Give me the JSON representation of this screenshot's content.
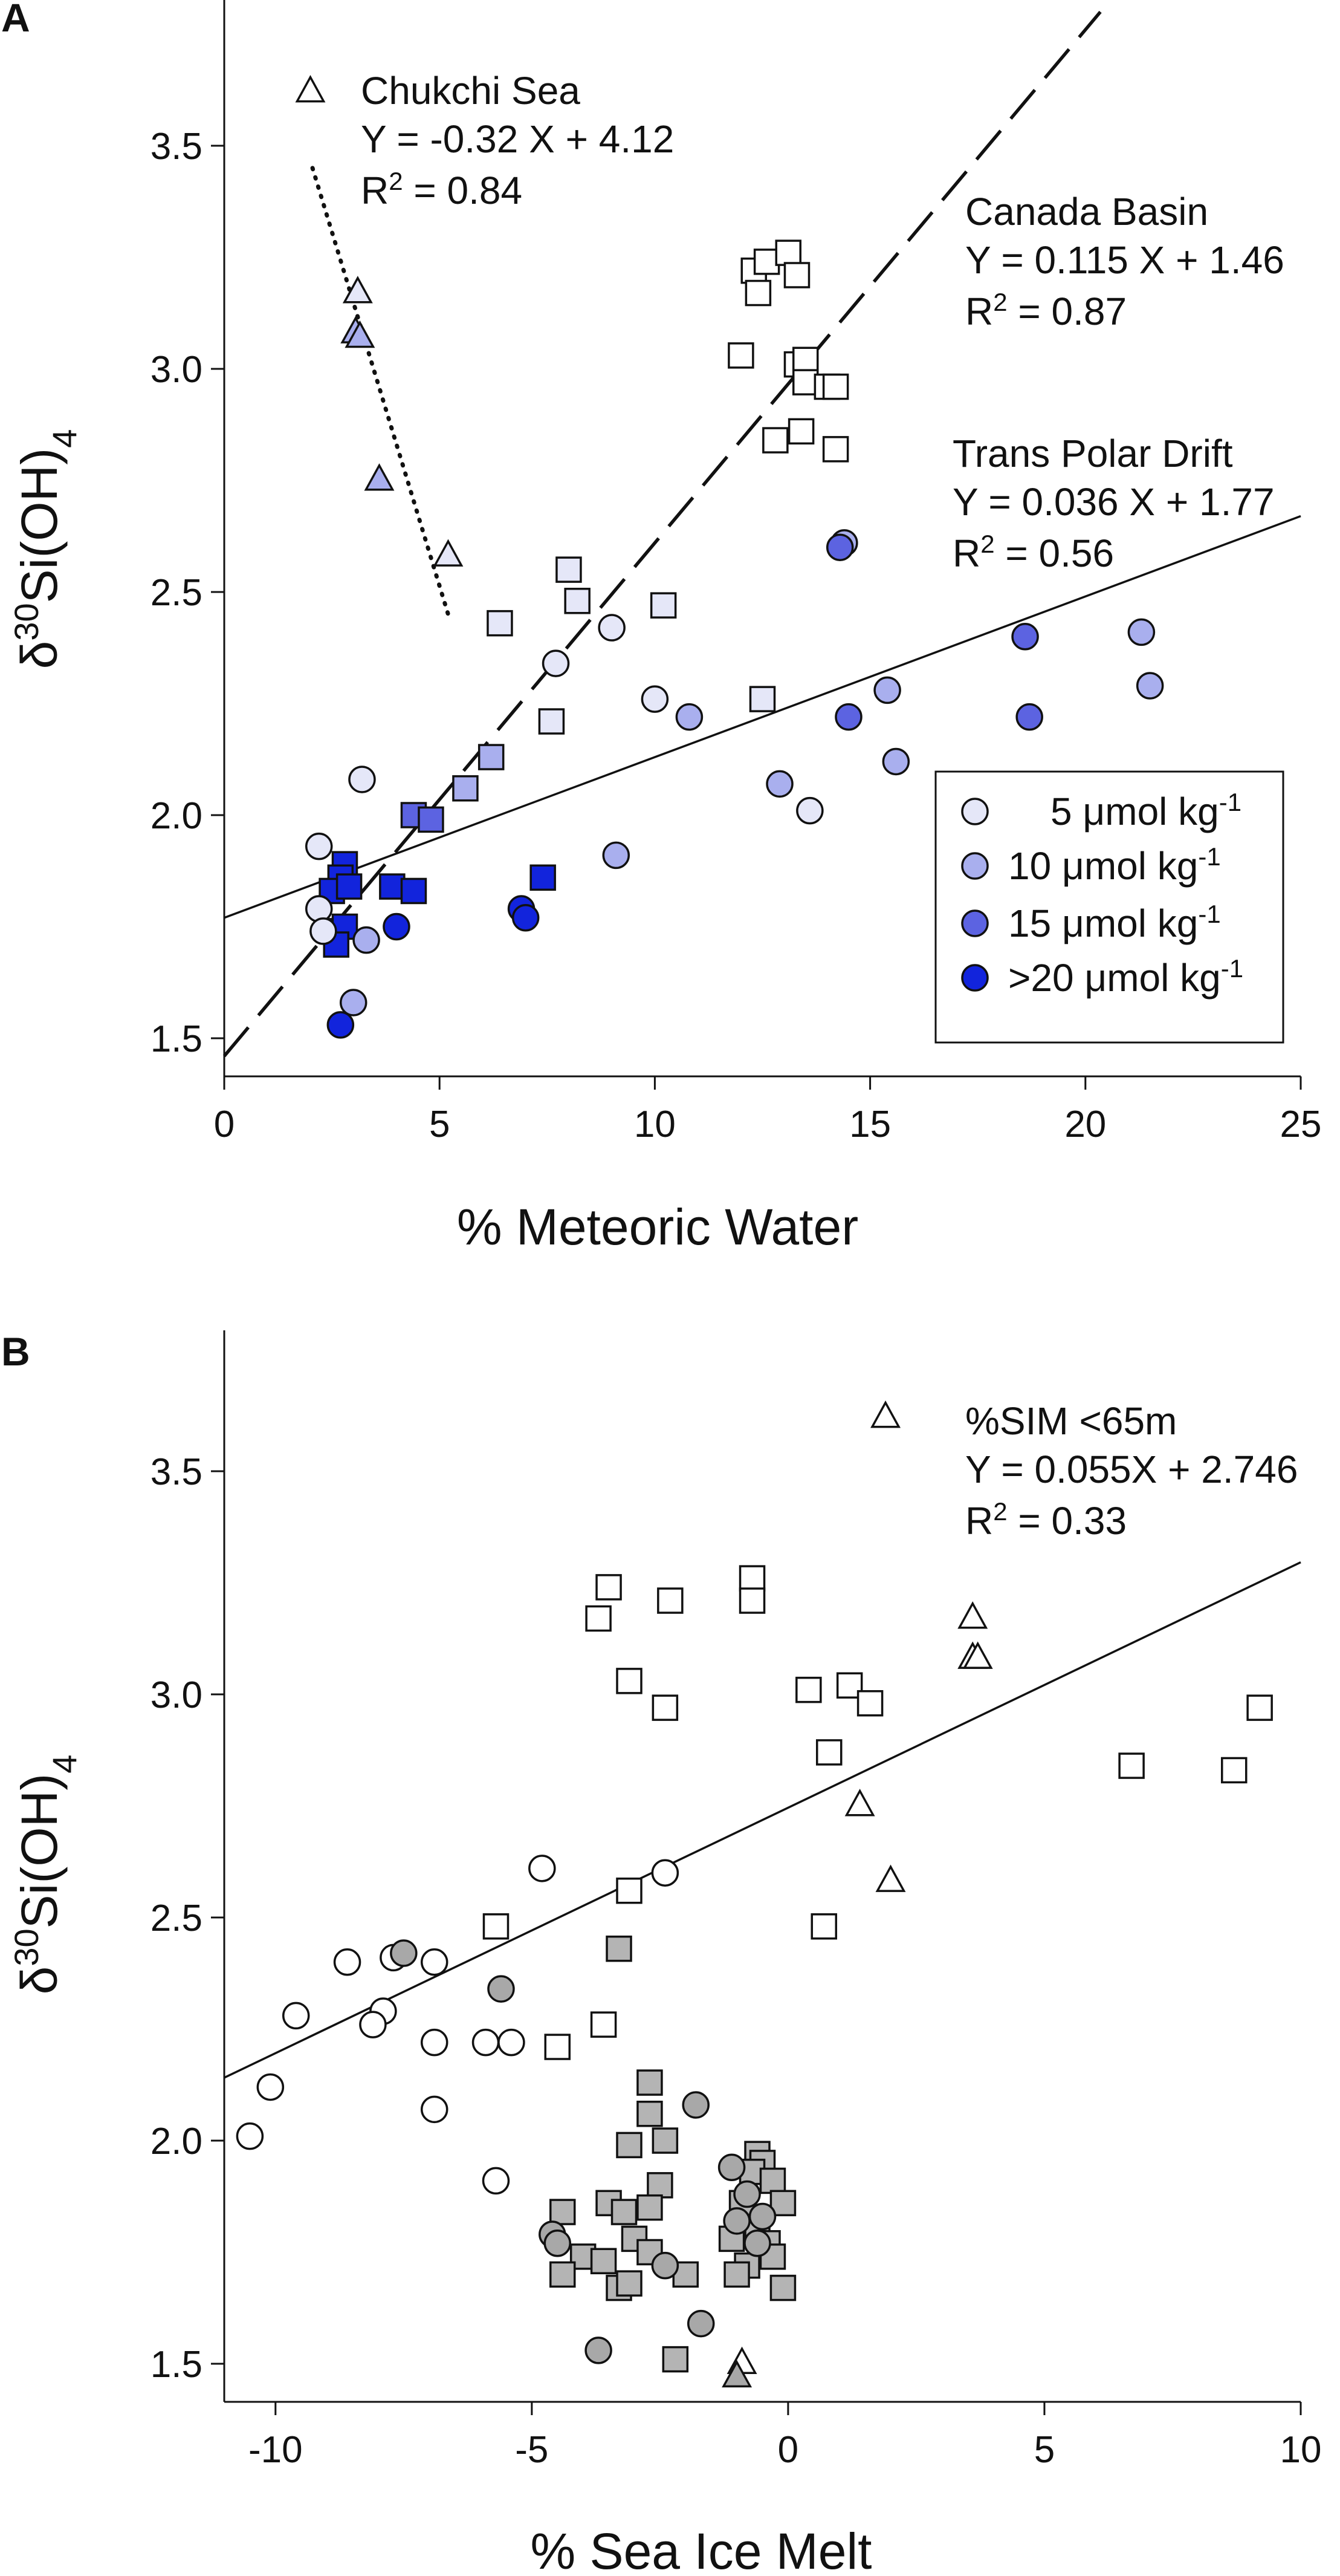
{
  "colors": {
    "c5": "#E5E7F8",
    "c10": "#A9AFEE",
    "c15": "#5C63E1",
    "c20": "#1224DC",
    "open": "#FFFFFF",
    "gray_circle": "#A8A8A8",
    "gray_square": "#B4B4B4",
    "outline": "#111111"
  },
  "chart_data": [
    {
      "panel": "A",
      "type": "scatter",
      "xlabel": "% Meteoric Water",
      "ylabel_main": "δ",
      "ylabel_sup": "30",
      "ylabel_rest": "Si(OH)",
      "ylabel_sub": "4",
      "xlim": [
        0,
        25
      ],
      "ylim": [
        1.45,
        3.8
      ],
      "xticks": [
        "0",
        "5",
        "10",
        "15",
        "20",
        "25"
      ],
      "yticks": [
        "1.5",
        "2.0",
        "2.5",
        "3.0",
        "3.5"
      ],
      "fits": [
        {
          "name": "Chukchi Sea",
          "eq": "Y = -0.32 X + 4.12",
          "r2_label": "R",
          "r2_sup": "2",
          "r2_val": " = 0.84",
          "slope": -0.32,
          "intercept": 4.12,
          "x_range": [
            2.05,
            5.2
          ],
          "style": "dotted"
        },
        {
          "name": "Canada Basin",
          "eq": "Y = 0.115 X + 1.46",
          "r2_label": "R",
          "r2_sup": "2",
          "r2_val": " = 0.87",
          "slope": 0.115,
          "intercept": 1.46,
          "x_range": [
            0,
            20.4
          ],
          "style": "dashed"
        },
        {
          "name": "Trans Polar Drift",
          "eq": "Y = 0.036 X + 1.77",
          "r2_label": "R",
          "r2_sup": "2",
          "r2_val": " = 0.56",
          "slope": 0.036,
          "intercept": 1.77,
          "x_range": [
            0,
            25
          ],
          "style": "solid"
        }
      ],
      "legend": {
        "placement": "bottom-right",
        "entries": [
          {
            "prefix": "5 ",
            "mu": "μ",
            "unit": "mol kg",
            "sup": "-1",
            "color_key": "c5"
          },
          {
            "prefix": "10 ",
            "mu": "μ",
            "unit": "mol kg",
            "sup": "-1",
            "color_key": "c10"
          },
          {
            "prefix": "15 ",
            "mu": "μ",
            "unit": "mol kg",
            "sup": "-1",
            "color_key": "c15"
          },
          {
            "prefix": ">20 ",
            "mu": "μ",
            "unit": "mol kg",
            "sup": "-1",
            "color_key": "c20"
          }
        ]
      },
      "series": [
        {
          "name": "Chukchi Sea",
          "marker": "triangle",
          "points": [
            [
              2.0,
              3.62,
              "open"
            ],
            [
              3.1,
              3.17,
              "c5"
            ],
            [
              3.05,
              3.08,
              "c10"
            ],
            [
              3.15,
              3.07,
              "c10"
            ],
            [
              3.6,
              2.75,
              "c10"
            ],
            [
              5.2,
              2.58,
              "c5"
            ]
          ]
        },
        {
          "name": "Canada Basin",
          "marker": "square",
          "points": [
            [
              12.3,
              3.22,
              "open"
            ],
            [
              12.6,
              3.24,
              "open"
            ],
            [
              13.1,
              3.26,
              "open"
            ],
            [
              13.3,
              3.21,
              "open"
            ],
            [
              12.4,
              3.17,
              "open"
            ],
            [
              12.0,
              3.03,
              "open"
            ],
            [
              13.3,
              3.01,
              "open"
            ],
            [
              13.5,
              3.02,
              "open"
            ],
            [
              13.5,
              2.97,
              "open"
            ],
            [
              14.0,
              2.96,
              "open"
            ],
            [
              14.2,
              2.96,
              "open"
            ],
            [
              12.8,
              2.84,
              "open"
            ],
            [
              13.4,
              2.86,
              "open"
            ],
            [
              14.2,
              2.82,
              "open"
            ],
            [
              8.0,
              2.55,
              "c5"
            ],
            [
              8.2,
              2.48,
              "c5"
            ],
            [
              6.4,
              2.43,
              "c5"
            ],
            [
              10.2,
              2.47,
              "c5"
            ],
            [
              7.6,
              2.21,
              "c5"
            ],
            [
              12.5,
              2.26,
              "c5"
            ],
            [
              6.2,
              2.13,
              "c10"
            ],
            [
              5.6,
              2.06,
              "c10"
            ],
            [
              4.4,
              2.0,
              "c15"
            ],
            [
              4.8,
              1.99,
              "c15"
            ],
            [
              2.8,
              1.89,
              "c20"
            ],
            [
              2.7,
              1.86,
              "c20"
            ],
            [
              2.5,
              1.83,
              "c20"
            ],
            [
              2.9,
              1.84,
              "c20"
            ],
            [
              3.9,
              1.84,
              "c20"
            ],
            [
              4.4,
              1.83,
              "c20"
            ],
            [
              7.4,
              1.86,
              "c20"
            ],
            [
              2.5,
              1.74,
              "c20"
            ],
            [
              2.8,
              1.75,
              "c20"
            ],
            [
              2.6,
              1.71,
              "c20"
            ]
          ]
        },
        {
          "name": "Trans Polar Drift",
          "marker": "circle",
          "points": [
            [
              9.0,
              2.42,
              "c5"
            ],
            [
              7.7,
              2.34,
              "c5"
            ],
            [
              10.0,
              2.26,
              "c5"
            ],
            [
              13.6,
              2.01,
              "c5"
            ],
            [
              3.2,
              2.08,
              "c5"
            ],
            [
              2.2,
              1.93,
              "c5"
            ],
            [
              2.2,
              1.79,
              "c5"
            ],
            [
              2.3,
              1.74,
              "c5"
            ],
            [
              14.4,
              2.61,
              "c10"
            ],
            [
              21.3,
              2.41,
              "c10"
            ],
            [
              21.5,
              2.29,
              "c10"
            ],
            [
              10.8,
              2.22,
              "c10"
            ],
            [
              15.4,
              2.28,
              "c10"
            ],
            [
              15.6,
              2.12,
              "c10"
            ],
            [
              12.9,
              2.07,
              "c10"
            ],
            [
              9.1,
              1.91,
              "c10"
            ],
            [
              3.3,
              1.72,
              "c10"
            ],
            [
              3.0,
              1.58,
              "c10"
            ],
            [
              14.5,
              2.22,
              "c15"
            ],
            [
              18.6,
              2.4,
              "c15"
            ],
            [
              18.7,
              2.22,
              "c15"
            ],
            [
              14.3,
              2.6,
              "c15"
            ],
            [
              6.9,
              1.79,
              "c20"
            ],
            [
              7.0,
              1.77,
              "c20"
            ],
            [
              4.0,
              1.75,
              "c20"
            ],
            [
              2.7,
              1.53,
              "c20"
            ]
          ]
        }
      ]
    },
    {
      "panel": "B",
      "type": "scatter",
      "xlabel": "% Sea Ice Melt",
      "ylabel_main": "δ",
      "ylabel_sup": "30",
      "ylabel_rest": "Si(OH)",
      "ylabel_sub": "4",
      "xlim": [
        -11,
        10
      ],
      "ylim": [
        1.45,
        3.8
      ],
      "xticks": [
        "-10",
        "-5",
        "0",
        "5",
        "10"
      ],
      "yticks": [
        "1.5",
        "2.0",
        "2.5",
        "3.0",
        "3.5"
      ],
      "fits": [
        {
          "name": "%SIM <65m",
          "eq": "Y = 0.055X + 2.746",
          "r2_label": "R",
          "r2_sup": "2",
          "r2_val": " = 0.33",
          "slope": 0.055,
          "intercept": 2.746,
          "x_range": [
            -11,
            10
          ],
          "style": "solid"
        }
      ],
      "series": [
        {
          "name": "Chukchi Sea",
          "marker": "triangle",
          "points": [
            [
              1.9,
              3.62,
              "open"
            ],
            [
              3.6,
              3.17,
              "open"
            ],
            [
              3.6,
              3.08,
              "open"
            ],
            [
              3.7,
              3.08,
              "open"
            ],
            [
              1.4,
              2.75,
              "open"
            ],
            [
              2.0,
              2.58,
              "open"
            ],
            [
              -0.9,
              1.5,
              "open"
            ],
            [
              -1.0,
              1.47,
              "gray_circle"
            ]
          ]
        },
        {
          "name": "Canada Basin",
          "marker": "square",
          "points": [
            [
              -3.7,
              3.17,
              "open"
            ],
            [
              -3.5,
              3.24,
              "open"
            ],
            [
              -2.3,
              3.21,
              "open"
            ],
            [
              -0.7,
              3.26,
              "open"
            ],
            [
              -0.7,
              3.21,
              "open"
            ],
            [
              -3.1,
              3.03,
              "open"
            ],
            [
              -2.4,
              2.97,
              "open"
            ],
            [
              0.4,
              3.01,
              "open"
            ],
            [
              1.2,
              3.02,
              "open"
            ],
            [
              1.6,
              2.98,
              "open"
            ],
            [
              0.8,
              2.87,
              "open"
            ],
            [
              6.7,
              2.84,
              "open"
            ],
            [
              8.7,
              2.83,
              "open"
            ],
            [
              9.2,
              2.97,
              "open"
            ],
            [
              -3.1,
              2.56,
              "open"
            ],
            [
              -5.7,
              2.48,
              "open"
            ],
            [
              0.7,
              2.48,
              "open"
            ],
            [
              -3.6,
              2.26,
              "open"
            ],
            [
              -4.5,
              2.21,
              "open"
            ],
            [
              -3.3,
              2.43,
              "gray_square"
            ],
            [
              -2.7,
              2.13,
              "gray_square"
            ],
            [
              -2.7,
              2.06,
              "gray_square"
            ],
            [
              -2.4,
              2.0,
              "gray_square"
            ],
            [
              -3.1,
              1.99,
              "gray_square"
            ],
            [
              -3.5,
              1.86,
              "gray_square"
            ],
            [
              -2.5,
              1.9,
              "gray_square"
            ],
            [
              -3.2,
              1.84,
              "gray_square"
            ],
            [
              -2.7,
              1.85,
              "gray_square"
            ],
            [
              -4.4,
              1.84,
              "gray_square"
            ],
            [
              -3.0,
              1.78,
              "gray_square"
            ],
            [
              -4.0,
              1.74,
              "gray_square"
            ],
            [
              -3.6,
              1.73,
              "gray_square"
            ],
            [
              -2.7,
              1.75,
              "gray_square"
            ],
            [
              -4.4,
              1.7,
              "gray_square"
            ],
            [
              -3.3,
              1.67,
              "gray_square"
            ],
            [
              -3.1,
              1.68,
              "gray_square"
            ],
            [
              -2.0,
              1.7,
              "gray_square"
            ],
            [
              -2.2,
              1.51,
              "gray_square"
            ],
            [
              -0.6,
              1.97,
              "gray_square"
            ],
            [
              -0.5,
              1.95,
              "gray_square"
            ],
            [
              -0.7,
              1.93,
              "gray_square"
            ],
            [
              -0.3,
              1.91,
              "gray_square"
            ],
            [
              -0.9,
              1.86,
              "gray_square"
            ],
            [
              -0.1,
              1.86,
              "gray_square"
            ],
            [
              -0.6,
              1.8,
              "gray_square"
            ],
            [
              -1.1,
              1.78,
              "gray_square"
            ],
            [
              -0.4,
              1.77,
              "gray_square"
            ],
            [
              -0.3,
              1.74,
              "gray_square"
            ],
            [
              -0.8,
              1.72,
              "gray_square"
            ],
            [
              -1.0,
              1.7,
              "gray_square"
            ],
            [
              -0.1,
              1.67,
              "gray_square"
            ]
          ]
        },
        {
          "name": "Trans Polar Drift",
          "marker": "circle",
          "points": [
            [
              -4.8,
              2.61,
              "open"
            ],
            [
              -2.4,
              2.6,
              "open"
            ],
            [
              -7.7,
              2.41,
              "open"
            ],
            [
              -6.9,
              2.4,
              "open"
            ],
            [
              -8.6,
              2.4,
              "open"
            ],
            [
              -9.6,
              2.28,
              "open"
            ],
            [
              -7.9,
              2.29,
              "open"
            ],
            [
              -8.1,
              2.26,
              "open"
            ],
            [
              -6.9,
              2.22,
              "open"
            ],
            [
              -5.9,
              2.22,
              "open"
            ],
            [
              -5.4,
              2.22,
              "open"
            ],
            [
              -10.1,
              2.12,
              "open"
            ],
            [
              -10.5,
              2.01,
              "open"
            ],
            [
              -6.9,
              2.07,
              "open"
            ],
            [
              -5.7,
              1.91,
              "open"
            ],
            [
              -7.5,
              2.42,
              "gray_circle"
            ],
            [
              -5.6,
              2.34,
              "gray_circle"
            ],
            [
              -1.8,
              2.08,
              "gray_circle"
            ],
            [
              -1.1,
              1.94,
              "gray_circle"
            ],
            [
              -0.8,
              1.88,
              "gray_circle"
            ],
            [
              -0.5,
              1.83,
              "gray_circle"
            ],
            [
              -1.0,
              1.82,
              "gray_circle"
            ],
            [
              -0.6,
              1.77,
              "gray_circle"
            ],
            [
              -4.6,
              1.79,
              "gray_circle"
            ],
            [
              -4.5,
              1.77,
              "gray_circle"
            ],
            [
              -2.4,
              1.72,
              "gray_circle"
            ],
            [
              -3.7,
              1.53,
              "gray_circle"
            ],
            [
              -1.7,
              1.59,
              "gray_circle"
            ]
          ]
        }
      ]
    }
  ]
}
